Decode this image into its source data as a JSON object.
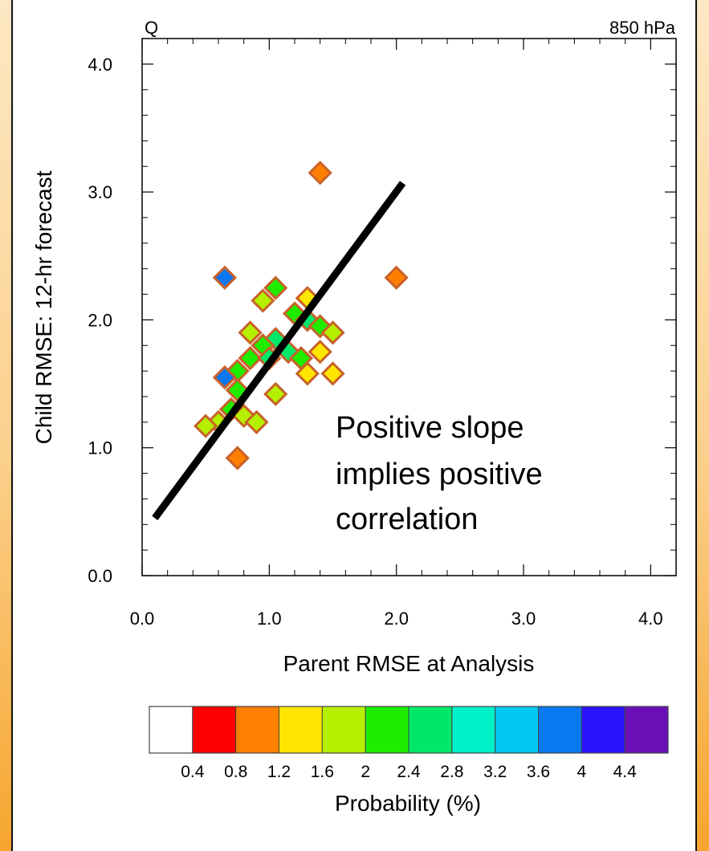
{
  "chart_data": {
    "type": "heatmap",
    "corner_left": "Q",
    "corner_right": "850 hPa",
    "xlabel": "Parent RMSE at Analysis",
    "ylabel": "Child RMSE: 12-hr forecast",
    "xlim": [
      0.0,
      4.2
    ],
    "ylim": [
      0.0,
      4.2
    ],
    "xticks": [
      "0.0",
      "1.0",
      "2.0",
      "3.0",
      "4.0"
    ],
    "yticks": [
      "0.0",
      "1.0",
      "2.0",
      "3.0",
      "4.0"
    ],
    "colorbar": {
      "label": "Probability (%)",
      "levels": [
        "0.4",
        "0.8",
        "1.2",
        "1.6",
        "2",
        "2.4",
        "2.8",
        "3.2",
        "3.6",
        "4",
        "4.4"
      ],
      "colors": [
        "#ffffff",
        "#ff0000",
        "#ff7f00",
        "#ffe600",
        "#b4f000",
        "#1eec00",
        "#00e86a",
        "#00f0c8",
        "#00c8f0",
        "#0a78f0",
        "#2a14ff",
        "#6a0fb8"
      ]
    },
    "cells": [
      {
        "x": 1.4,
        "y": 3.15,
        "level": 2
      },
      {
        "x": 0.65,
        "y": 2.33,
        "level": 9
      },
      {
        "x": 2.0,
        "y": 2.33,
        "level": 2
      },
      {
        "x": 1.05,
        "y": 2.25,
        "level": 5
      },
      {
        "x": 0.95,
        "y": 2.15,
        "level": 4
      },
      {
        "x": 1.3,
        "y": 2.17,
        "level": 3
      },
      {
        "x": 1.2,
        "y": 2.05,
        "level": 5
      },
      {
        "x": 1.3,
        "y": 2.0,
        "level": 6
      },
      {
        "x": 1.4,
        "y": 1.95,
        "level": 5
      },
      {
        "x": 1.5,
        "y": 1.9,
        "level": 4
      },
      {
        "x": 0.85,
        "y": 1.9,
        "level": 4
      },
      {
        "x": 1.05,
        "y": 1.85,
        "level": 6
      },
      {
        "x": 0.95,
        "y": 1.8,
        "level": 5
      },
      {
        "x": 1.15,
        "y": 1.75,
        "level": 6
      },
      {
        "x": 1.25,
        "y": 1.7,
        "level": 5
      },
      {
        "x": 1.4,
        "y": 1.75,
        "level": 3
      },
      {
        "x": 0.85,
        "y": 1.7,
        "level": 5
      },
      {
        "x": 1.0,
        "y": 1.7,
        "level": 6
      },
      {
        "x": 0.75,
        "y": 1.6,
        "level": 5
      },
      {
        "x": 0.65,
        "y": 1.55,
        "level": 9
      },
      {
        "x": 0.75,
        "y": 1.45,
        "level": 5
      },
      {
        "x": 1.3,
        "y": 1.58,
        "level": 3
      },
      {
        "x": 1.5,
        "y": 1.58,
        "level": 3
      },
      {
        "x": 1.05,
        "y": 1.42,
        "level": 4
      },
      {
        "x": 0.7,
        "y": 1.3,
        "level": 5
      },
      {
        "x": 0.8,
        "y": 1.25,
        "level": 4
      },
      {
        "x": 0.9,
        "y": 1.2,
        "level": 4
      },
      {
        "x": 0.6,
        "y": 1.2,
        "level": 4
      },
      {
        "x": 0.5,
        "y": 1.17,
        "level": 4
      },
      {
        "x": 0.75,
        "y": 0.92,
        "level": 2
      }
    ],
    "fit_line": {
      "x": [
        0.1,
        2.05
      ],
      "y": [
        0.45,
        3.07
      ]
    },
    "annotation": [
      "Positive slope",
      "implies positive",
      "correlation"
    ],
    "grid": false
  }
}
